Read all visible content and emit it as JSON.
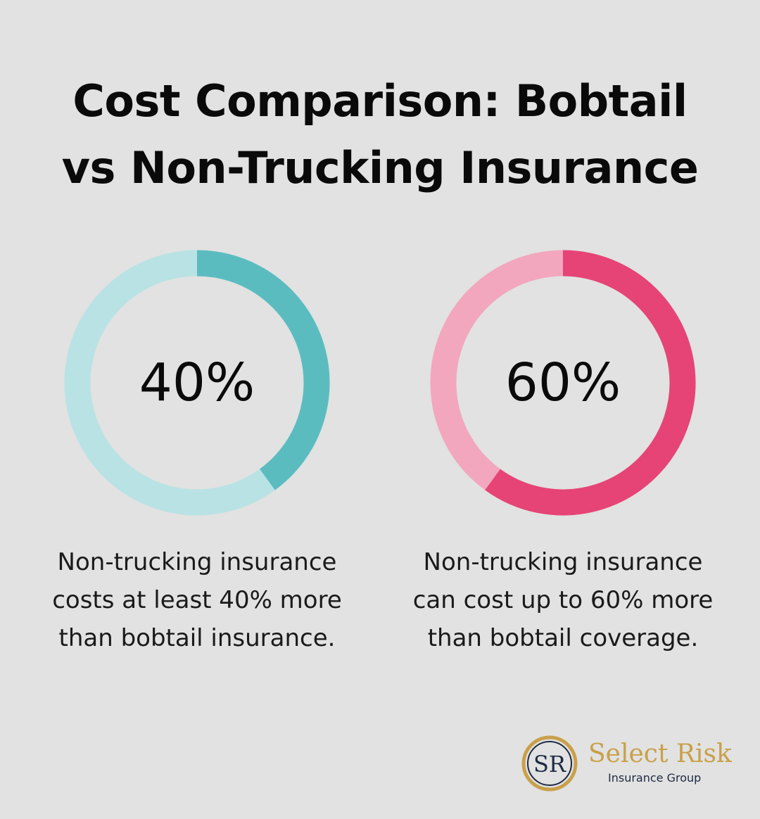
{
  "title": {
    "line1": "Cost Comparison: Bobtail",
    "line2": "vs Non-Trucking Insurance"
  },
  "chart_data": [
    {
      "type": "pie",
      "value": 40,
      "value_label": "40%",
      "caption": [
        "Non-trucking insurance",
        "costs at least 40% more",
        "than bobtail insurance."
      ],
      "colors": {
        "filled": "#5bbcc0",
        "track": "#b9e2e4"
      }
    },
    {
      "type": "pie",
      "value": 60,
      "value_label": "60%",
      "caption": [
        "Non-trucking insurance",
        "can cost up to 60% more",
        "than bobtail coverage."
      ],
      "colors": {
        "filled": "#e64476",
        "track": "#f2a7be"
      }
    }
  ],
  "logo": {
    "monogram": "SR",
    "name": "Select Risk",
    "subtitle": "Insurance Group",
    "colors": {
      "gold": "#c9a04a",
      "navy": "#1f2a44"
    }
  }
}
